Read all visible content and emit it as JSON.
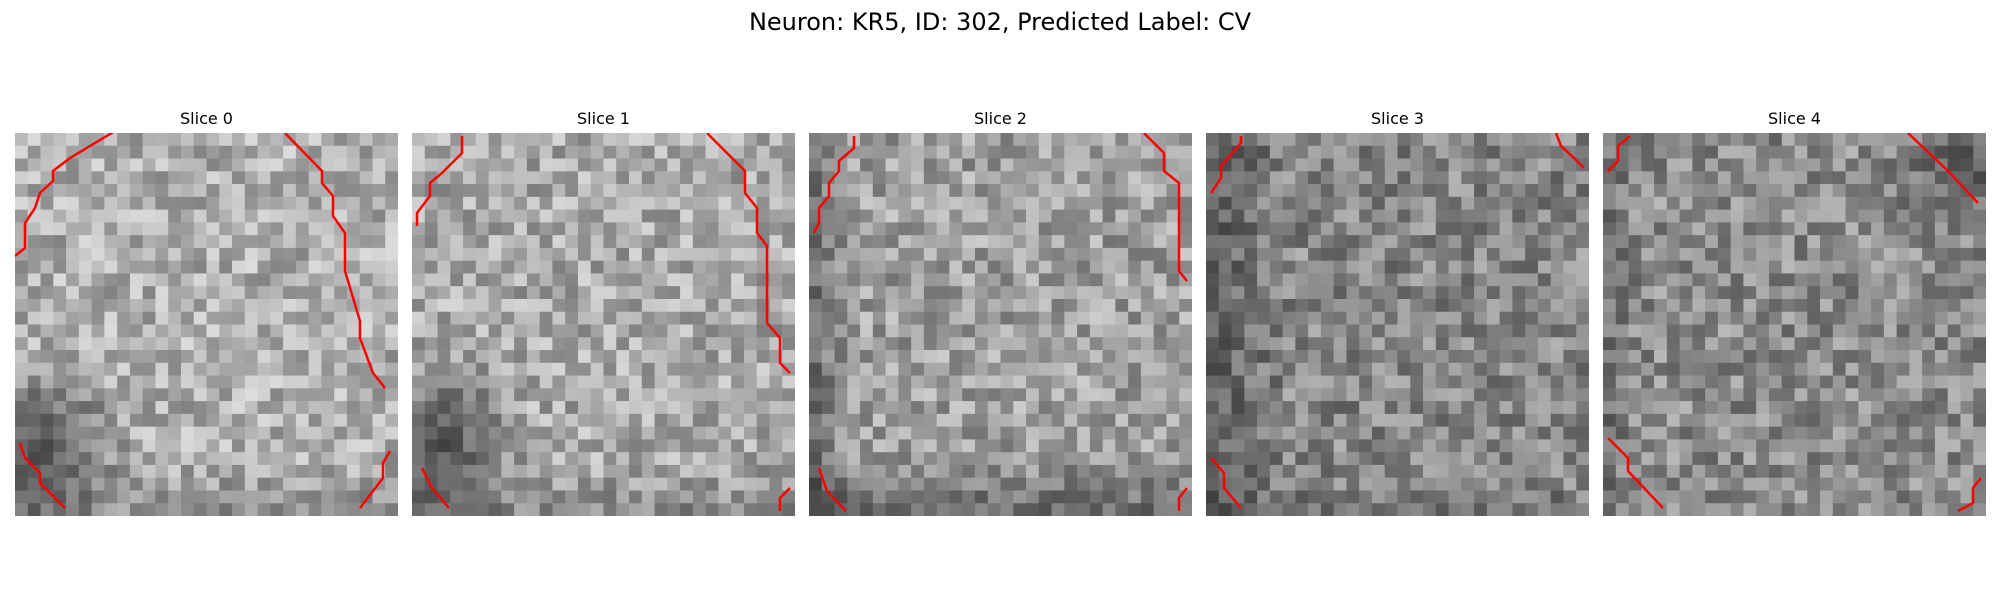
{
  "figure": {
    "title": "Neuron: KR5, ID: 302, Predicted Label: CV"
  },
  "contour_color": "#ff0000",
  "panels": [
    {
      "title": "Slice 0",
      "base_gray": 175,
      "dark_corner": "left-bottom"
    },
    {
      "title": "Slice 1",
      "base_gray": 170,
      "dark_corner": "left-bottom"
    },
    {
      "title": "Slice 2",
      "base_gray": 160,
      "dark_corner": "bottom"
    },
    {
      "title": "Slice 3",
      "base_gray": 135,
      "dark_corner": "left"
    },
    {
      "title": "Slice 4",
      "base_gray": 140,
      "dark_corner": "top-right"
    }
  ]
}
